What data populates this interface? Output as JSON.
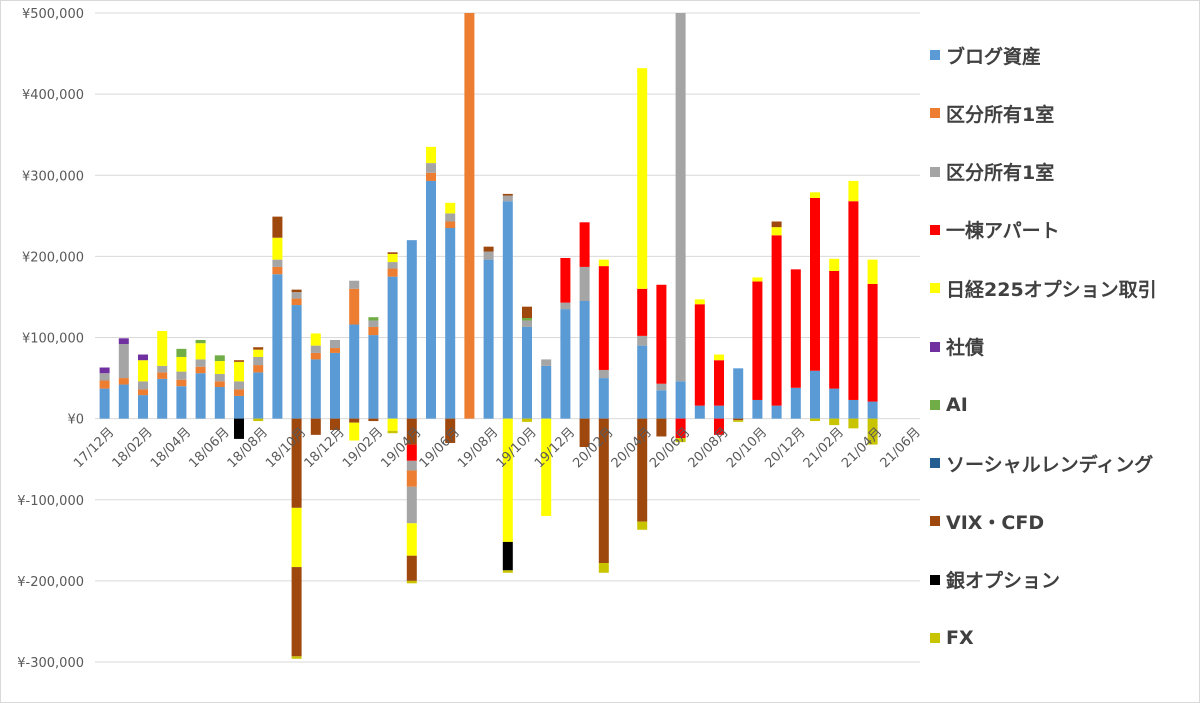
{
  "chart_data": {
    "type": "bar",
    "stacked": true,
    "y_tick_labels": [
      "¥500,000",
      "¥400,000",
      "¥300,000",
      "¥200,000",
      "¥100,000",
      "¥0",
      "¥-100,000",
      "¥-200,000",
      "¥-300,000"
    ],
    "y_ticks": [
      500000,
      400000,
      300000,
      200000,
      100000,
      0,
      -100000,
      -200000,
      -300000
    ],
    "ylim": [
      -300000,
      500000
    ],
    "x_tick_labels": [
      "17/12月",
      "18/02月",
      "18/04月",
      "18/06月",
      "18/08月",
      "18/10月",
      "18/12月",
      "19/02月",
      "19/04月",
      "19/06月",
      "19/08月",
      "19/10月",
      "19/12月",
      "20/02月",
      "20/04月",
      "20/06月",
      "20/08月",
      "20/10月",
      "20/12月",
      "21/02月",
      "21/04月",
      "21/06月"
    ],
    "grid": true,
    "legend_position": "right",
    "months": [
      "17/12",
      "18/01",
      "18/02",
      "18/03",
      "18/04",
      "18/05",
      "18/06",
      "18/07",
      "18/08",
      "18/09",
      "18/10",
      "18/11",
      "18/12",
      "19/01",
      "19/02",
      "19/03",
      "19/04",
      "19/05",
      "19/06",
      "19/07",
      "19/08",
      "19/09",
      "19/10",
      "19/11",
      "19/12",
      "20/01",
      "20/02",
      "20/03",
      "20/04",
      "20/05",
      "20/06",
      "20/07",
      "20/08",
      "20/09",
      "20/10",
      "20/11",
      "20/12",
      "21/01",
      "21/02",
      "21/03",
      "21/04"
    ],
    "series": [
      {
        "name": "ブログ資産",
        "color": "#5B9BD5",
        "values": [
          37000,
          42000,
          29000,
          49000,
          40000,
          56000,
          39000,
          28000,
          57000,
          178000,
          140000,
          73000,
          81000,
          116000,
          103000,
          175000,
          220000,
          293000,
          235000,
          0,
          196000,
          268000,
          113000,
          65000,
          135000,
          145000,
          50000,
          0,
          90000,
          35000,
          46000,
          16000,
          16000,
          62000,
          23000,
          16000,
          38000,
          59000,
          37000,
          23000,
          21000
        ]
      },
      {
        "name": "区分所有1室",
        "color": "#ED7D31",
        "values": [
          10000,
          8000,
          7000,
          8000,
          8000,
          8000,
          7000,
          8000,
          9000,
          9000,
          8000,
          8000,
          6000,
          0,
          10000,
          10000,
          0,
          10000,
          8000,
          0,
          0,
          0,
          0,
          0,
          0,
          0,
          0,
          0,
          0,
          0,
          0,
          0,
          0,
          0,
          0,
          0,
          0,
          0,
          0,
          0,
          0
        ]
      },
      {
        "name": "区分所有1室 ",
        "color": "#ED7D31",
        "values": [
          0,
          0,
          0,
          0,
          0,
          0,
          0,
          0,
          0,
          0,
          0,
          0,
          0,
          44000,
          0,
          0,
          0,
          0,
          0,
          500000,
          0,
          0,
          0,
          0,
          0,
          0,
          0,
          0,
          0,
          0,
          0,
          0,
          0,
          0,
          0,
          0,
          0,
          0,
          0,
          0,
          0
        ]
      },
      {
        "name": "区分所有1室",
        "color": "#A5A5A5",
        "values": [
          9000,
          42000,
          10000,
          8000,
          10000,
          9000,
          9000,
          10000,
          10000,
          9000,
          8000,
          9000,
          10000,
          10000,
          8000,
          8000,
          0,
          12000,
          10000,
          0,
          10000,
          7000,
          8000,
          8000,
          8000,
          42000,
          10000,
          0,
          12000,
          8000,
          0,
          0,
          0,
          0,
          0,
          0,
          0,
          0,
          0,
          0,
          0
        ]
      },
      {
        "name": "区分所有1室 ",
        "color": "#A5A5A5",
        "values": [
          0,
          0,
          0,
          0,
          0,
          0,
          0,
          0,
          0,
          0,
          0,
          0,
          0,
          0,
          0,
          0,
          0,
          0,
          0,
          0,
          0,
          0,
          0,
          0,
          0,
          0,
          0,
          0,
          0,
          0,
          455000,
          0,
          0,
          0,
          0,
          0,
          0,
          0,
          0,
          0,
          0
        ]
      },
      {
        "name": "一棟アパート",
        "color": "#FF0000",
        "values": [
          0,
          0,
          0,
          0,
          0,
          0,
          0,
          0,
          0,
          0,
          0,
          0,
          0,
          0,
          0,
          0,
          0,
          0,
          0,
          0,
          0,
          0,
          0,
          0,
          55000,
          55000,
          128000,
          0,
          58000,
          122000,
          0,
          125000,
          56000,
          0,
          146000,
          210000,
          146000,
          213000,
          145000,
          245000,
          145000
        ]
      },
      {
        "name": "日経225オプション取引",
        "color": "#FFFF00",
        "values": [
          0,
          0,
          26000,
          43000,
          18000,
          20000,
          16000,
          24000,
          9000,
          27000,
          0,
          15000,
          0,
          0,
          0,
          10000,
          0,
          20000,
          13000,
          0,
          0,
          0,
          0,
          0,
          0,
          0,
          8000,
          0,
          272000,
          0,
          0,
          6000,
          7000,
          0,
          5000,
          10000,
          0,
          7000,
          15000,
          25000,
          30000
        ]
      },
      {
        "name": "社債",
        "color": "#7030A0",
        "values": [
          7000,
          7000,
          7000,
          0,
          0,
          0,
          0,
          0,
          0,
          0,
          0,
          0,
          0,
          0,
          0,
          0,
          0,
          0,
          0,
          0,
          0,
          0,
          0,
          0,
          0,
          0,
          0,
          0,
          0,
          0,
          0,
          0,
          0,
          0,
          0,
          0,
          0,
          0,
          0,
          0,
          0
        ]
      },
      {
        "name": "AI",
        "color": "#70AD47",
        "values": [
          0,
          0,
          0,
          0,
          10000,
          4000,
          7000,
          0,
          0,
          0,
          0,
          0,
          0,
          0,
          4000,
          0,
          0,
          0,
          0,
          0,
          0,
          0,
          3000,
          0,
          0,
          0,
          0,
          0,
          0,
          0,
          0,
          0,
          0,
          0,
          0,
          0,
          0,
          0,
          0,
          0,
          0
        ]
      },
      {
        "name": "ソーシャルレンディング",
        "color": "#255E91",
        "values": [
          0,
          0,
          0,
          0,
          0,
          0,
          0,
          0,
          0,
          0,
          0,
          0,
          0,
          0,
          0,
          0,
          0,
          0,
          0,
          0,
          0,
          0,
          0,
          0,
          0,
          0,
          0,
          0,
          0,
          0,
          0,
          0,
          0,
          0,
          0,
          0,
          0,
          0,
          0,
          0,
          0
        ]
      },
      {
        "name": "VIX・CFD",
        "color": "#9E480E",
        "values": [
          0,
          0,
          0,
          0,
          0,
          0,
          0,
          2000,
          3000,
          26000,
          3000,
          0,
          0,
          0,
          0,
          2000,
          0,
          0,
          0,
          0,
          6000,
          2000,
          14000,
          0,
          0,
          0,
          0,
          0,
          0,
          0,
          0,
          0,
          0,
          0,
          0,
          7000,
          0,
          0,
          0,
          0,
          0
        ]
      },
      {
        "name": "VIX・CFD",
        "color": "#9E480E",
        "values": [
          0,
          0,
          0,
          0,
          0,
          0,
          0,
          0,
          0,
          0,
          -110000,
          -20000,
          -14000,
          -5000,
          -3000,
          0,
          -32000,
          0,
          -30000,
          0,
          0,
          0,
          0,
          0,
          0,
          -35000,
          -178000,
          0,
          -127000,
          -22000,
          0,
          0,
          0,
          -2000,
          0,
          0,
          0,
          0,
          0,
          0,
          0
        ]
      },
      {
        "name": "一棟アパート",
        "color": "#FF0000",
        "values": [
          0,
          0,
          0,
          0,
          0,
          0,
          0,
          0,
          0,
          0,
          0,
          0,
          0,
          0,
          0,
          0,
          -20000,
          0,
          0,
          0,
          0,
          0,
          0,
          0,
          0,
          0,
          0,
          0,
          0,
          0,
          -24000,
          0,
          -20000,
          0,
          0,
          0,
          0,
          0,
          0,
          0,
          0
        ]
      },
      {
        "name": "区分所有1室",
        "color": "#A5A5A5",
        "values": [
          0,
          0,
          0,
          0,
          0,
          0,
          0,
          0,
          0,
          0,
          0,
          0,
          0,
          0,
          0,
          0,
          -12000,
          0,
          0,
          0,
          0,
          0,
          0,
          0,
          0,
          0,
          0,
          0,
          0,
          0,
          0,
          0,
          0,
          0,
          0,
          0,
          0,
          0,
          0,
          0,
          0
        ]
      },
      {
        "name": "区分所有1室 ",
        "color": "#ED7D31",
        "values": [
          0,
          0,
          0,
          0,
          0,
          0,
          0,
          0,
          0,
          0,
          0,
          0,
          0,
          0,
          0,
          0,
          -20000,
          0,
          0,
          0,
          0,
          0,
          0,
          0,
          0,
          0,
          0,
          0,
          0,
          0,
          0,
          0,
          0,
          0,
          0,
          0,
          0,
          0,
          0,
          0,
          0
        ]
      },
      {
        "name": "区分所有1室",
        "color": "#A5A5A5",
        "values": [
          0,
          0,
          0,
          0,
          0,
          0,
          0,
          0,
          0,
          0,
          0,
          0,
          0,
          0,
          0,
          0,
          -45000,
          0,
          0,
          0,
          0,
          0,
          0,
          0,
          0,
          0,
          0,
          0,
          0,
          0,
          0,
          0,
          0,
          0,
          0,
          0,
          0,
          0,
          0,
          0,
          0
        ]
      },
      {
        "name": "日経225オプション取引",
        "color": "#FFFF00",
        "values": [
          0,
          0,
          0,
          0,
          0,
          0,
          0,
          0,
          0,
          0,
          -73000,
          0,
          0,
          -22000,
          0,
          -15000,
          -40000,
          0,
          0,
          0,
          0,
          -152000,
          0,
          -120000,
          0,
          0,
          0,
          0,
          0,
          0,
          0,
          0,
          0,
          0,
          0,
          0,
          0,
          0,
          0,
          0,
          0
        ]
      },
      {
        "name": "VIX・CFD",
        "color": "#9E480E",
        "values": [
          0,
          0,
          0,
          0,
          0,
          0,
          0,
          0,
          0,
          0,
          0,
          0,
          0,
          0,
          0,
          0,
          -31000,
          0,
          0,
          0,
          0,
          0,
          0,
          0,
          0,
          0,
          0,
          0,
          0,
          0,
          0,
          0,
          0,
          0,
          0,
          0,
          0,
          0,
          0,
          0,
          0
        ]
      },
      {
        "name": "銀オプション",
        "color": "#000000",
        "values": [
          0,
          0,
          0,
          0,
          0,
          0,
          0,
          -25000,
          0,
          0,
          0,
          0,
          0,
          0,
          0,
          0,
          0,
          0,
          0,
          0,
          0,
          -35000,
          0,
          0,
          0,
          0,
          0,
          0,
          0,
          0,
          0,
          0,
          0,
          0,
          0,
          0,
          0,
          0,
          0,
          0,
          0
        ]
      },
      {
        "name": "VIX・CFD",
        "color": "#9E480E",
        "values": [
          0,
          0,
          0,
          0,
          0,
          0,
          0,
          0,
          0,
          0,
          -110000,
          0,
          0,
          0,
          0,
          0,
          0,
          0,
          0,
          0,
          0,
          0,
          0,
          0,
          0,
          0,
          0,
          0,
          0,
          0,
          0,
          0,
          0,
          0,
          0,
          0,
          0,
          0,
          0,
          0,
          0
        ]
      },
      {
        "name": "FX",
        "color": "#C9C400",
        "values": [
          0,
          0,
          0,
          0,
          0,
          0,
          0,
          0,
          -3000,
          0,
          -3000,
          0,
          0,
          0,
          0,
          -3000,
          -3000,
          0,
          0,
          0,
          0,
          -3000,
          -4000,
          0,
          0,
          0,
          -12000,
          0,
          -10000,
          0,
          -5000,
          0,
          0,
          -2000,
          0,
          0,
          0,
          -3000,
          -8000,
          -12000,
          -32000
        ]
      }
    ]
  },
  "legend": {
    "items": [
      {
        "label": "ブログ資産",
        "color": "#5B9BD5"
      },
      {
        "label": "区分所有1室",
        "color": "#ED7D31"
      },
      {
        "label": "区分所有1室",
        "color": "#A5A5A5"
      },
      {
        "label": "一棟アパート",
        "color": "#FF0000"
      },
      {
        "label": "日経225オプション取引",
        "color": "#FFFF00"
      },
      {
        "label": "社債",
        "color": "#7030A0"
      },
      {
        "label": "AI",
        "color": "#70AD47"
      },
      {
        "label": "ソーシャルレンディング",
        "color": "#255E91"
      },
      {
        "label": "VIX・CFD",
        "color": "#9E480E"
      },
      {
        "label": "銀オプション",
        "color": "#000000"
      },
      {
        "label": "FX",
        "color": "#C9C400"
      }
    ]
  }
}
